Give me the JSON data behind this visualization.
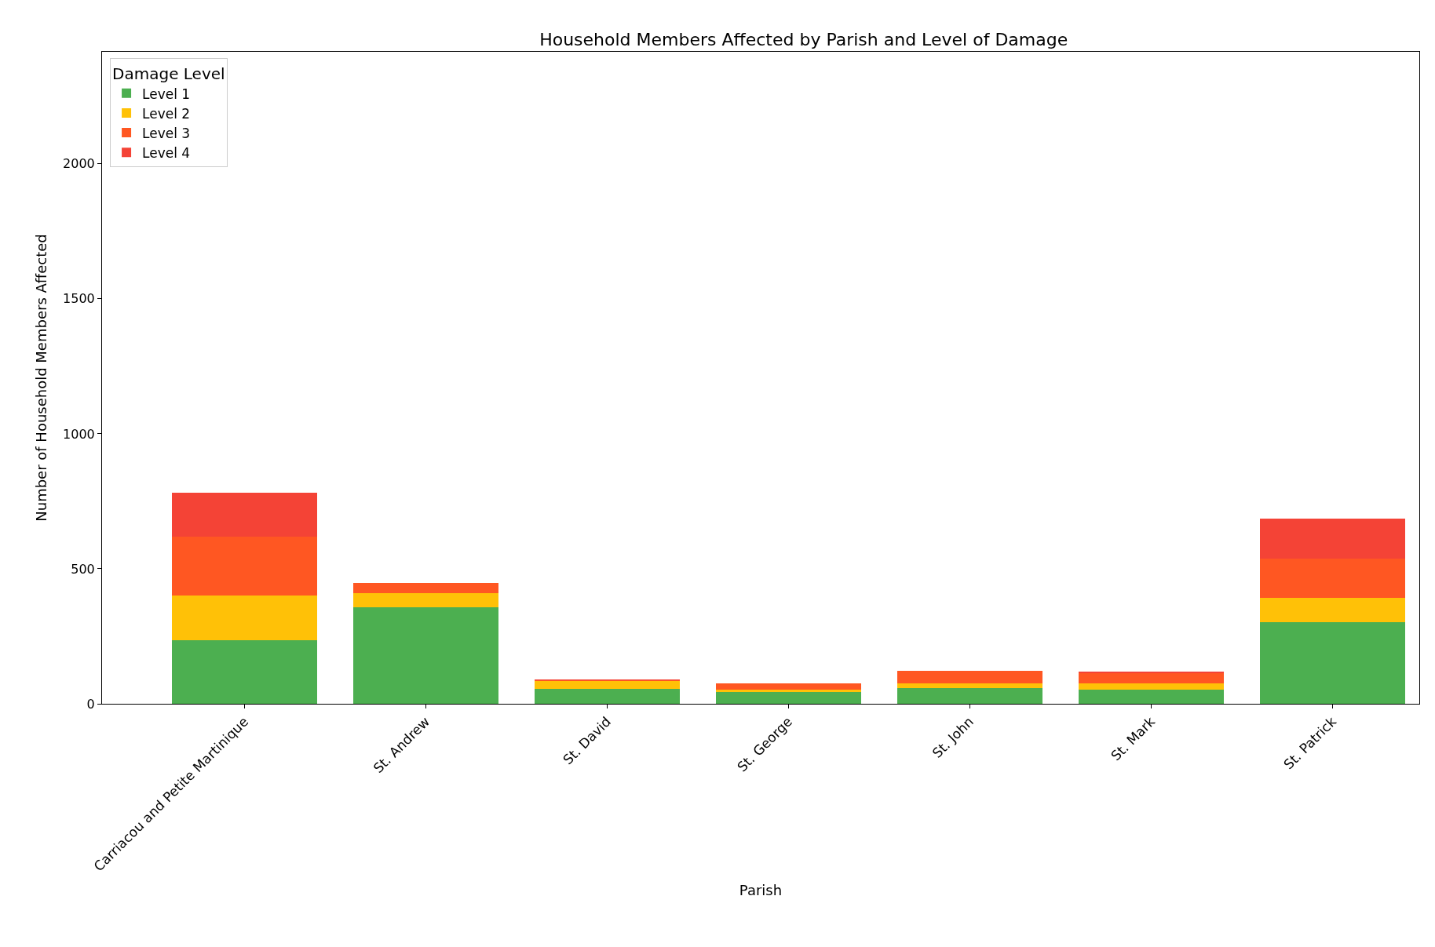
{
  "chart_data": {
    "type": "bar",
    "title": "Household Members Affected by Parish and Level of Damage",
    "xlabel": "Parish",
    "ylabel": "Number of Household Members Affected",
    "categories": [
      "Carriacou and Petite Martinique",
      "St. Andrew",
      "St. David",
      "St. George",
      "St. John",
      "St. Mark",
      "St. Patrick"
    ],
    "stacked": true,
    "legend_title": "Damage Level",
    "legend": "top left",
    "ylim": [
      0,
      2415
    ],
    "yticks": [
      0,
      500,
      1000,
      1500,
      2000
    ],
    "series": [
      {
        "name": "Level 1",
        "color": "#4caf50",
        "values": [
          234,
          358,
          56,
          43,
          57,
          52,
          302
        ]
      },
      {
        "name": "Level 2",
        "color": "#ffc107",
        "values": [
          167,
          52,
          29,
          9,
          19,
          24,
          89
        ]
      },
      {
        "name": "Level 3",
        "color": "#ff5722",
        "values": [
          218,
          37,
          3,
          24,
          46,
          38,
          148
        ]
      },
      {
        "name": "Level 4",
        "color": "#f44336",
        "values": [
          162,
          0,
          1,
          0,
          0,
          4,
          147
        ]
      }
    ]
  }
}
